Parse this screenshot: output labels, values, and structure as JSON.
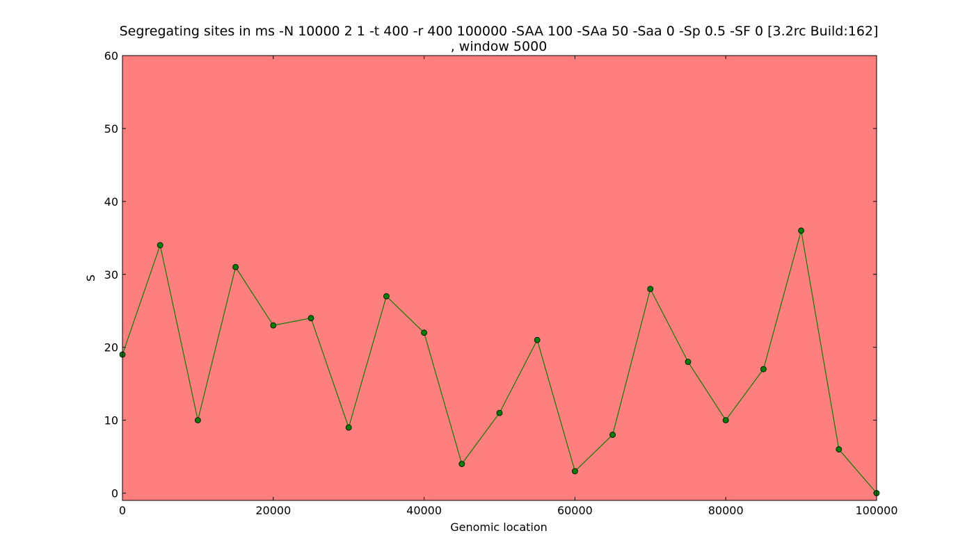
{
  "chart_data": {
    "type": "line",
    "title_line1": "Segregating sites in ms -N 10000 2 1 -t 400 -r 400 100000 -SAA 100 -SAa 50 -Saa 0 -Sp 0.5 -SF 0  [3.2rc Build:162]",
    "title_line2": ", window 5000",
    "xlabel": "Genomic location",
    "ylabel": "S",
    "xlim": [
      0,
      100000
    ],
    "ylim": [
      -1,
      60
    ],
    "xticks": [
      0,
      20000,
      40000,
      60000,
      80000,
      100000
    ],
    "yticks": [
      0,
      10,
      20,
      30,
      40,
      50,
      60
    ],
    "grid": false,
    "background_color": "#ff7f7f",
    "line_color": "#008000",
    "marker_color": "#008000",
    "x": [
      0,
      5000,
      10000,
      15000,
      20000,
      25000,
      30000,
      35000,
      40000,
      45000,
      50000,
      55000,
      60000,
      65000,
      70000,
      75000,
      80000,
      85000,
      90000,
      95000,
      100000
    ],
    "y": [
      19,
      34,
      10,
      31,
      23,
      24,
      9,
      27,
      22,
      4,
      11,
      21,
      3,
      8,
      28,
      18,
      10,
      17,
      36,
      6,
      0
    ]
  }
}
